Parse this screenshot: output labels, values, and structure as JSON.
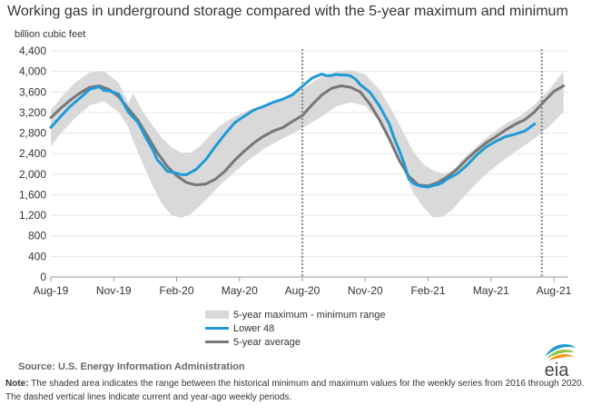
{
  "chart_data": {
    "type": "area",
    "title": "Working gas in underground storage compared with the 5-year maximum and minimum",
    "ylabel": "billion cubic feet",
    "xlabel": "",
    "ylim": [
      0,
      4400
    ],
    "yticks": [
      0,
      400,
      800,
      1200,
      1600,
      2000,
      2400,
      2800,
      3200,
      3600,
      4000,
      4400
    ],
    "ytick_labels": [
      "0",
      "400",
      "800",
      "1,200",
      "1,600",
      "2,000",
      "2,400",
      "2,800",
      "3,200",
      "3,600",
      "4,000",
      "4,400"
    ],
    "xlim": [
      0,
      107
    ],
    "xticks": [
      0,
      13,
      26,
      39,
      52,
      65,
      78,
      91,
      104
    ],
    "xtick_labels": [
      "Aug-19",
      "Nov-19",
      "Feb-20",
      "May-20",
      "Aug-20",
      "Nov-20",
      "Feb-21",
      "May-21",
      "Aug-21"
    ],
    "grid": true,
    "legend_position": "bottom",
    "vlines": [
      52,
      101.5
    ],
    "series": [
      {
        "name": "5-year maximum - minimum range",
        "kind": "range",
        "x": [
          0,
          2,
          5,
          8,
          11,
          14,
          16,
          17,
          19,
          21,
          23,
          25,
          27,
          29,
          31,
          33,
          35,
          38,
          41,
          44,
          47,
          50,
          53,
          56,
          59,
          62,
          65,
          68,
          71,
          73,
          75,
          77,
          79,
          81,
          83,
          85,
          88,
          91,
          94,
          97,
          100,
          103,
          106
        ],
        "upper": [
          3250,
          3480,
          3780,
          3980,
          4010,
          3780,
          3380,
          3570,
          3220,
          2950,
          2700,
          2520,
          2420,
          2420,
          2560,
          2760,
          2950,
          3120,
          3250,
          3330,
          3430,
          3560,
          3720,
          3900,
          4000,
          4020,
          3940,
          3640,
          3160,
          2790,
          2430,
          2200,
          2070,
          2010,
          2060,
          2280,
          2540,
          2780,
          2980,
          3130,
          3350,
          3640,
          4000
        ],
        "lower": [
          2540,
          2790,
          3090,
          3340,
          3420,
          3210,
          2920,
          2650,
          2210,
          1780,
          1420,
          1200,
          1150,
          1230,
          1400,
          1590,
          1790,
          2040,
          2280,
          2490,
          2650,
          2790,
          2950,
          3120,
          3320,
          3400,
          3330,
          3020,
          2480,
          2060,
          1630,
          1360,
          1160,
          1170,
          1310,
          1520,
          1820,
          2080,
          2300,
          2500,
          2690,
          2930,
          3210
        ]
      },
      {
        "name": "Lower 48",
        "color": "#1f9ad6",
        "x": [
          0,
          2,
          4,
          6,
          8,
          10,
          11,
          12,
          14,
          16,
          18,
          20,
          21,
          22,
          23,
          24,
          25,
          26,
          27,
          28,
          30,
          32,
          34,
          36,
          38,
          40,
          42,
          44,
          46,
          48,
          50,
          52,
          54,
          55,
          56,
          57,
          58,
          59,
          60,
          61,
          62,
          63,
          64,
          66,
          68,
          70,
          71,
          72,
          73,
          74,
          75,
          76,
          77,
          78,
          79,
          80,
          81,
          82,
          84,
          86,
          88,
          90,
          92,
          94,
          96,
          98,
          100
        ],
        "values": [
          2910,
          3120,
          3320,
          3480,
          3650,
          3700,
          3630,
          3620,
          3560,
          3210,
          3010,
          2650,
          2490,
          2280,
          2180,
          2060,
          2040,
          2020,
          1990,
          1990,
          2090,
          2280,
          2540,
          2780,
          3000,
          3130,
          3250,
          3320,
          3400,
          3460,
          3550,
          3710,
          3870,
          3910,
          3950,
          3920,
          3920,
          3940,
          3930,
          3930,
          3910,
          3850,
          3740,
          3590,
          3320,
          2970,
          2700,
          2470,
          2220,
          1910,
          1820,
          1780,
          1760,
          1750,
          1780,
          1800,
          1840,
          1910,
          2010,
          2170,
          2370,
          2530,
          2640,
          2730,
          2780,
          2840,
          2980
        ]
      },
      {
        "name": "5-year average",
        "color": "#777777",
        "x": [
          0,
          2,
          4,
          6,
          8,
          10,
          12,
          14,
          16,
          18,
          20,
          22,
          24,
          26,
          28,
          30,
          32,
          34,
          36,
          38,
          40,
          42,
          44,
          46,
          48,
          50,
          52,
          54,
          56,
          58,
          60,
          62,
          64,
          66,
          68,
          70,
          72,
          74,
          76,
          78,
          80,
          82,
          84,
          86,
          88,
          90,
          92,
          94,
          96,
          98,
          100,
          102,
          104,
          106
        ],
        "values": [
          3100,
          3280,
          3440,
          3580,
          3690,
          3720,
          3650,
          3510,
          3280,
          3050,
          2740,
          2420,
          2160,
          1970,
          1840,
          1790,
          1810,
          1900,
          2060,
          2270,
          2450,
          2610,
          2740,
          2840,
          2910,
          3030,
          3140,
          3350,
          3540,
          3670,
          3720,
          3690,
          3600,
          3360,
          3050,
          2680,
          2270,
          1960,
          1790,
          1770,
          1840,
          1950,
          2100,
          2290,
          2460,
          2610,
          2730,
          2860,
          2970,
          3060,
          3210,
          3420,
          3610,
          3720
        ]
      }
    ]
  },
  "source_label": "Source:",
  "source_text": "U.S. Energy Information Administration",
  "note_label": "Note:",
  "note_text": "The shaded area indicates the range between the historical minimum and maximum values for the weekly series from 2016 through 2020. The dashed vertical lines indicate current and year-ago weekly periods.",
  "logo_text": "eia",
  "colors": {
    "range": "#d9d9d9",
    "grid": "#e6e6e6",
    "lower48": "#1f9ad6",
    "average": "#777777",
    "vline": "#888888"
  }
}
